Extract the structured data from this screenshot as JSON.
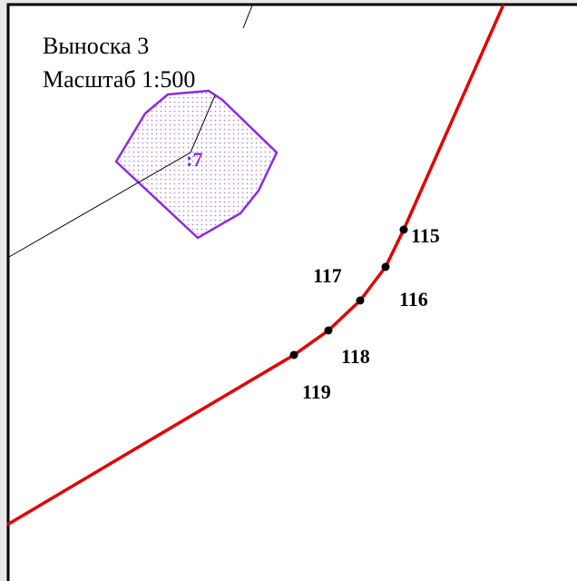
{
  "callout": {
    "title": "Выноска 3",
    "scale": "Масштаб 1:500"
  },
  "parcel": {
    "label": ":7"
  },
  "points": [
    {
      "label": "115"
    },
    {
      "label": "116"
    },
    {
      "label": "117"
    },
    {
      "label": "118"
    },
    {
      "label": "119"
    }
  ]
}
